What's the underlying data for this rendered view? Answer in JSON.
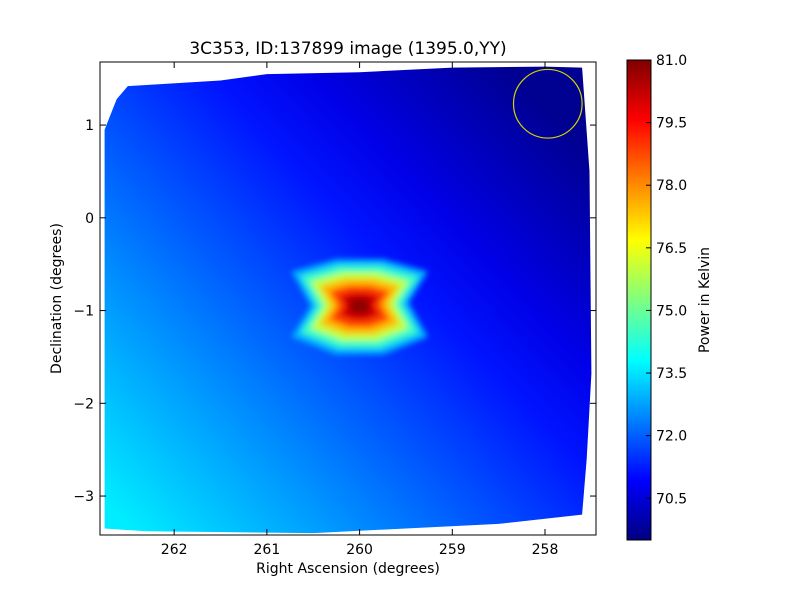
{
  "chart_data": {
    "type": "heatmap",
    "title": "3C353, ID:137899 image (1395.0,YY)",
    "xlabel": "Right Ascension (degrees)",
    "ylabel": "Declination (degrees)",
    "xlim": [
      262.8,
      257.45
    ],
    "ylim": [
      -3.42,
      1.68
    ],
    "x_ticks": [
      262,
      261,
      260,
      259,
      258
    ],
    "y_ticks": [
      1,
      0,
      -1,
      -2,
      -3
    ],
    "x_tick_labels": [
      "262",
      "261",
      "260",
      "259",
      "258"
    ],
    "y_tick_labels": [
      "1",
      "0",
      "−1",
      "−2",
      "−3"
    ],
    "colorbar": {
      "label": "Power in Kelvin",
      "colormap": "jet",
      "range": [
        69.5,
        81.0
      ],
      "ticks": [
        70.5,
        72.0,
        73.5,
        75.0,
        76.5,
        78.0,
        79.5,
        81.0
      ],
      "tick_labels": [
        "70.5",
        "72.0",
        "73.5",
        "75.0",
        "76.5",
        "78.0",
        "79.5",
        "81.0"
      ]
    },
    "peak": {
      "ra": 260.0,
      "dec": -0.95,
      "value": 80.8
    },
    "background_gradient": [
      {
        "ra": 262.6,
        "dec": -3.2,
        "value": 73.6
      },
      {
        "ra": 258.0,
        "dec": 1.2,
        "value": 69.7
      }
    ],
    "annotations": [
      {
        "shape": "circle",
        "ra": 257.97,
        "dec": 1.23,
        "radius_deg": 0.37,
        "color": "#d4d400"
      }
    ],
    "footprint_polygon": [
      [
        262.75,
        0.95
      ],
      [
        262.62,
        1.28
      ],
      [
        262.5,
        1.42
      ],
      [
        261.5,
        1.48
      ],
      [
        261.0,
        1.55
      ],
      [
        260.0,
        1.57
      ],
      [
        259.0,
        1.62
      ],
      [
        258.0,
        1.63
      ],
      [
        257.6,
        1.62
      ],
      [
        257.52,
        0.5
      ],
      [
        257.5,
        -1.68
      ],
      [
        257.55,
        -2.6
      ],
      [
        257.6,
        -3.2
      ],
      [
        258.5,
        -3.3
      ],
      [
        259.5,
        -3.35
      ],
      [
        260.5,
        -3.4
      ],
      [
        262.3,
        -3.38
      ],
      [
        262.75,
        -3.35
      ]
    ]
  }
}
